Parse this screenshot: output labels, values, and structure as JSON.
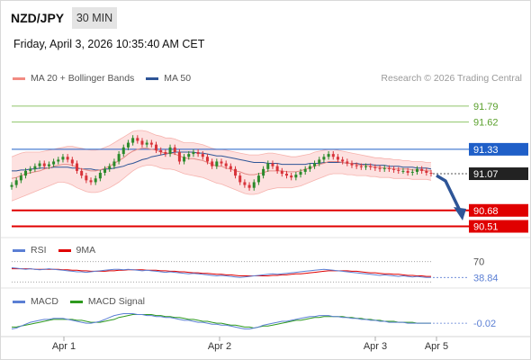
{
  "header": {
    "symbol": "NZD/JPY",
    "timeframe": "30 MIN",
    "datetime": "Friday, April 3, 2026 10:35:40 AM CET",
    "copyright": "Research © 2026 Trading Central"
  },
  "legend_main": [
    {
      "label": "MA 20 + Bollinger Bands",
      "color": "#f28b82"
    },
    {
      "label": "MA 50",
      "color": "#2e5597"
    }
  ],
  "legend_rsi": [
    {
      "label": "RSI",
      "color": "#5b7fd4"
    },
    {
      "label": "9MA",
      "color": "#e00000"
    }
  ],
  "legend_macd": [
    {
      "label": "MACD",
      "color": "#5b7fd4"
    },
    {
      "label": "MACD Signal",
      "color": "#2e9a1e"
    }
  ],
  "chart_data": [
    {
      "type": "line",
      "title": "NZD/JPY 30 MIN",
      "x_ticks": [
        "Apr 1",
        "Apr 2",
        "Apr 3",
        "Apr 5"
      ],
      "ylim": [
        90.4,
        91.98
      ],
      "price_levels": [
        {
          "value": 91.79,
          "label": "91.79",
          "style": "resistance",
          "color": "#8fc46a"
        },
        {
          "value": 91.62,
          "label": "91.62",
          "style": "resistance",
          "color": "#8fc46a"
        },
        {
          "value": 91.33,
          "label": "91.33",
          "style": "pivot",
          "color": "#1f5fc8"
        },
        {
          "value": 91.07,
          "label": "91.07",
          "style": "last_price",
          "color": "#222222"
        },
        {
          "value": 90.68,
          "label": "90.68",
          "style": "support",
          "color": "#e00000"
        },
        {
          "value": 90.51,
          "label": "90.51",
          "style": "support",
          "color": "#e00000"
        }
      ],
      "price_close": [
        90.95,
        91.0,
        91.05,
        91.1,
        91.12,
        91.15,
        91.18,
        91.15,
        91.17,
        91.2,
        91.22,
        91.25,
        91.22,
        91.18,
        91.1,
        91.05,
        91.0,
        90.98,
        91.02,
        91.08,
        91.12,
        91.15,
        91.2,
        91.28,
        91.35,
        91.4,
        91.45,
        91.42,
        91.38,
        91.4,
        91.38,
        91.32,
        91.3,
        91.28,
        91.35,
        91.3,
        91.2,
        91.25,
        91.28,
        91.3,
        91.28,
        91.25,
        91.2,
        91.15,
        91.2,
        91.18,
        91.15,
        91.12,
        91.05,
        90.98,
        90.95,
        90.92,
        90.98,
        91.05,
        91.12,
        91.18,
        91.15,
        91.1,
        91.07,
        91.05,
        91.03,
        91.06,
        91.09,
        91.12,
        91.15,
        91.18,
        91.22,
        91.25,
        91.28,
        91.25,
        91.22,
        91.2,
        91.18,
        91.16,
        91.15,
        91.14,
        91.15,
        91.14,
        91.13,
        91.12,
        91.13,
        91.12,
        91.11,
        91.1,
        91.1,
        91.08,
        91.09,
        91.12,
        91.1,
        91.08,
        91.07
      ],
      "ma20_upper": [
        91.25,
        91.27,
        91.29,
        91.3,
        91.3,
        91.3,
        91.3,
        91.31,
        91.32,
        91.33,
        91.34,
        91.35,
        91.36,
        91.36,
        91.35,
        91.34,
        91.33,
        91.32,
        91.32,
        91.33,
        91.35,
        91.37,
        91.4,
        91.43,
        91.46,
        91.49,
        91.52,
        91.53,
        91.53,
        91.52,
        91.5,
        91.48,
        91.47,
        91.45,
        91.45,
        91.44,
        91.42,
        91.4,
        91.4,
        91.4,
        91.39,
        91.38,
        91.36,
        91.34,
        91.33,
        91.33,
        91.32,
        91.31,
        91.3,
        91.29,
        91.28,
        91.27,
        91.27,
        91.27,
        91.28,
        91.29,
        91.29,
        91.28,
        91.27,
        91.26,
        91.25,
        91.25,
        91.26,
        91.27,
        91.28,
        91.3,
        91.31,
        91.32,
        91.33,
        91.33,
        91.32,
        91.31,
        91.3,
        91.29,
        91.28,
        91.27,
        91.26,
        91.25,
        91.24,
        91.24,
        91.23,
        91.23,
        91.22,
        91.22,
        91.21,
        91.21,
        91.2,
        91.2,
        91.2,
        91.19,
        91.19
      ],
      "ma20_lower": [
        90.78,
        90.8,
        90.82,
        90.84,
        90.86,
        90.88,
        90.9,
        90.92,
        90.94,
        90.96,
        90.98,
        90.98,
        90.97,
        90.95,
        90.92,
        90.9,
        90.88,
        90.87,
        90.87,
        90.88,
        90.9,
        90.92,
        90.95,
        90.98,
        91.02,
        91.06,
        91.1,
        91.13,
        91.15,
        91.16,
        91.16,
        91.15,
        91.13,
        91.12,
        91.12,
        91.11,
        91.09,
        91.07,
        91.06,
        91.05,
        91.04,
        91.03,
        91.01,
        90.99,
        90.97,
        90.96,
        90.94,
        90.92,
        90.9,
        90.88,
        90.86,
        90.85,
        90.85,
        90.86,
        90.88,
        90.9,
        90.91,
        90.92,
        90.92,
        90.92,
        90.92,
        90.93,
        90.94,
        90.96,
        90.98,
        91.0,
        91.02,
        91.04,
        91.06,
        91.07,
        91.07,
        91.07,
        91.06,
        91.06,
        91.05,
        91.05,
        91.05,
        91.04,
        91.04,
        91.03,
        91.03,
        91.03,
        91.02,
        91.02,
        91.02,
        91.02,
        91.01,
        91.01,
        91.01,
        91.01,
        91.0
      ],
      "ma20": [
        91.02,
        91.03,
        91.05,
        91.07,
        91.08,
        91.09,
        91.1,
        91.12,
        91.13,
        91.15,
        91.16,
        91.17,
        91.17,
        91.16,
        91.14,
        91.12,
        91.11,
        91.1,
        91.1,
        91.11,
        91.13,
        91.15,
        91.18,
        91.21,
        91.24,
        91.28,
        91.31,
        91.33,
        91.34,
        91.34,
        91.33,
        91.32,
        91.3,
        91.29,
        91.29,
        91.28,
        91.26,
        91.24,
        91.23,
        91.23,
        91.22,
        91.21,
        91.19,
        91.17,
        91.15,
        91.15,
        91.13,
        91.12,
        91.1,
        91.09,
        91.07,
        91.06,
        91.06,
        91.07,
        91.08,
        91.1,
        91.1,
        91.1,
        91.1,
        91.09,
        91.09,
        91.09,
        91.1,
        91.12,
        91.13,
        91.15,
        91.17,
        91.18,
        91.2,
        91.2,
        91.2,
        91.19,
        91.18,
        91.18,
        91.17,
        91.16,
        91.16,
        91.15,
        91.14,
        91.14,
        91.13,
        91.13,
        91.12,
        91.12,
        91.12,
        91.12,
        91.11,
        91.11,
        91.11,
        91.1,
        91.1
      ],
      "ma50": [
        91.1,
        91.1,
        91.11,
        91.11,
        91.12,
        91.12,
        91.13,
        91.13,
        91.13,
        91.14,
        91.14,
        91.14,
        91.14,
        91.13,
        91.13,
        91.12,
        91.12,
        91.12,
        91.11,
        91.11,
        91.12,
        91.12,
        91.13,
        91.14,
        91.15,
        91.17,
        91.18,
        91.2,
        91.22,
        91.23,
        91.25,
        91.26,
        91.27,
        91.28,
        91.29,
        91.3,
        91.3,
        91.3,
        91.3,
        91.3,
        91.29,
        91.29,
        91.28,
        91.27,
        91.26,
        91.26,
        91.25,
        91.24,
        91.23,
        91.22,
        91.21,
        91.2,
        91.19,
        91.19,
        91.19,
        91.18,
        91.18,
        91.18,
        91.17,
        91.17,
        91.17,
        91.17,
        91.17,
        91.17,
        91.18,
        91.18,
        91.18,
        91.19,
        91.19,
        91.19,
        91.19,
        91.19,
        91.18,
        91.18,
        91.18,
        91.17,
        91.17,
        91.17,
        91.16,
        91.16,
        91.16,
        91.15,
        91.15,
        91.15,
        91.14,
        91.14,
        91.14,
        91.13,
        91.13,
        91.13,
        91.12
      ],
      "forecast_path": [
        91.07,
        90.62
      ]
    },
    {
      "type": "line",
      "title": "",
      "series": [
        {
          "name": "RSI",
          "values": [
            58,
            57,
            56,
            55,
            56,
            55,
            54,
            55,
            56,
            55,
            54,
            53,
            52,
            51,
            50,
            50,
            49,
            50,
            51,
            52,
            53,
            54,
            55,
            55,
            54,
            55,
            54,
            53,
            52,
            53,
            52,
            51,
            50,
            49,
            50,
            49,
            48,
            47,
            46,
            47,
            46,
            45,
            44,
            43,
            42,
            43,
            42,
            41,
            40,
            39,
            40,
            41,
            42,
            43,
            44,
            45,
            46,
            45,
            46,
            47,
            48,
            49,
            50,
            51,
            52,
            53,
            54,
            55,
            54,
            53,
            52,
            51,
            50,
            49,
            48,
            47,
            46,
            45,
            44,
            43,
            44,
            43,
            42,
            41,
            42,
            41,
            40,
            41,
            40,
            39,
            38.84
          ]
        },
        {
          "name": "9MA",
          "values": [
            56,
            56,
            56,
            56,
            56,
            55,
            55,
            55,
            55,
            55,
            55,
            54,
            54,
            53,
            53,
            52,
            52,
            51,
            51,
            51,
            51,
            52,
            52,
            53,
            53,
            54,
            54,
            54,
            54,
            53,
            53,
            53,
            52,
            52,
            51,
            51,
            50,
            50,
            49,
            48,
            48,
            47,
            47,
            46,
            45,
            45,
            44,
            44,
            43,
            42,
            42,
            42,
            42,
            42,
            42,
            42,
            43,
            43,
            44,
            44,
            45,
            46,
            46,
            47,
            48,
            49,
            50,
            51,
            52,
            52,
            52,
            52,
            52,
            51,
            51,
            50,
            49,
            48,
            48,
            47,
            46,
            46,
            45,
            45,
            44,
            43,
            43,
            42,
            42,
            41,
            41
          ]
        }
      ],
      "ylim": [
        20,
        80
      ],
      "reference_lines": [
        70,
        30
      ],
      "y_labels": [
        "70",
        "38.84"
      ]
    },
    {
      "type": "line",
      "title": "",
      "series": [
        {
          "name": "MACD",
          "values": [
            -0.08,
            -0.07,
            -0.05,
            -0.03,
            -0.01,
            0.0,
            0.01,
            0.02,
            0.02,
            0.03,
            0.03,
            0.03,
            0.02,
            0.01,
            0.0,
            -0.01,
            -0.02,
            -0.02,
            -0.01,
            0.0,
            0.02,
            0.04,
            0.06,
            0.07,
            0.08,
            0.08,
            0.08,
            0.07,
            0.07,
            0.06,
            0.06,
            0.05,
            0.05,
            0.04,
            0.04,
            0.03,
            0.02,
            0.01,
            0.01,
            0.0,
            -0.01,
            -0.01,
            -0.02,
            -0.03,
            -0.03,
            -0.04,
            -0.04,
            -0.05,
            -0.06,
            -0.07,
            -0.08,
            -0.08,
            -0.07,
            -0.06,
            -0.04,
            -0.03,
            -0.02,
            -0.01,
            0.0,
            0.0,
            0.01,
            0.02,
            0.03,
            0.04,
            0.05,
            0.05,
            0.06,
            0.06,
            0.06,
            0.05,
            0.05,
            0.04,
            0.04,
            0.03,
            0.03,
            0.02,
            0.02,
            0.01,
            0.01,
            0.0,
            0.0,
            -0.01,
            -0.01,
            -0.01,
            -0.01,
            -0.02,
            -0.02,
            -0.02,
            -0.02,
            -0.02,
            -0.02
          ]
        },
        {
          "name": "MACD Signal",
          "values": [
            -0.06,
            -0.06,
            -0.05,
            -0.04,
            -0.03,
            -0.02,
            -0.01,
            0.0,
            0.01,
            0.02,
            0.02,
            0.02,
            0.02,
            0.02,
            0.01,
            0.01,
            0.0,
            -0.01,
            -0.01,
            -0.01,
            0.0,
            0.01,
            0.02,
            0.04,
            0.05,
            0.06,
            0.07,
            0.07,
            0.07,
            0.07,
            0.07,
            0.06,
            0.06,
            0.05,
            0.05,
            0.04,
            0.04,
            0.03,
            0.02,
            0.02,
            0.01,
            0.0,
            0.0,
            -0.01,
            -0.02,
            -0.02,
            -0.03,
            -0.04,
            -0.04,
            -0.05,
            -0.06,
            -0.06,
            -0.07,
            -0.06,
            -0.05,
            -0.05,
            -0.04,
            -0.03,
            -0.02,
            -0.01,
            0.0,
            0.01,
            0.01,
            0.02,
            0.03,
            0.04,
            0.04,
            0.05,
            0.05,
            0.05,
            0.05,
            0.05,
            0.04,
            0.04,
            0.03,
            0.03,
            0.02,
            0.02,
            0.01,
            0.01,
            0.0,
            0.0,
            0.0,
            -0.01,
            -0.01,
            -0.01,
            -0.01,
            -0.02,
            -0.02,
            -0.02,
            -0.02
          ]
        }
      ],
      "ylim": [
        -0.15,
        0.15
      ],
      "y_labels": [
        "-0.02"
      ]
    }
  ]
}
